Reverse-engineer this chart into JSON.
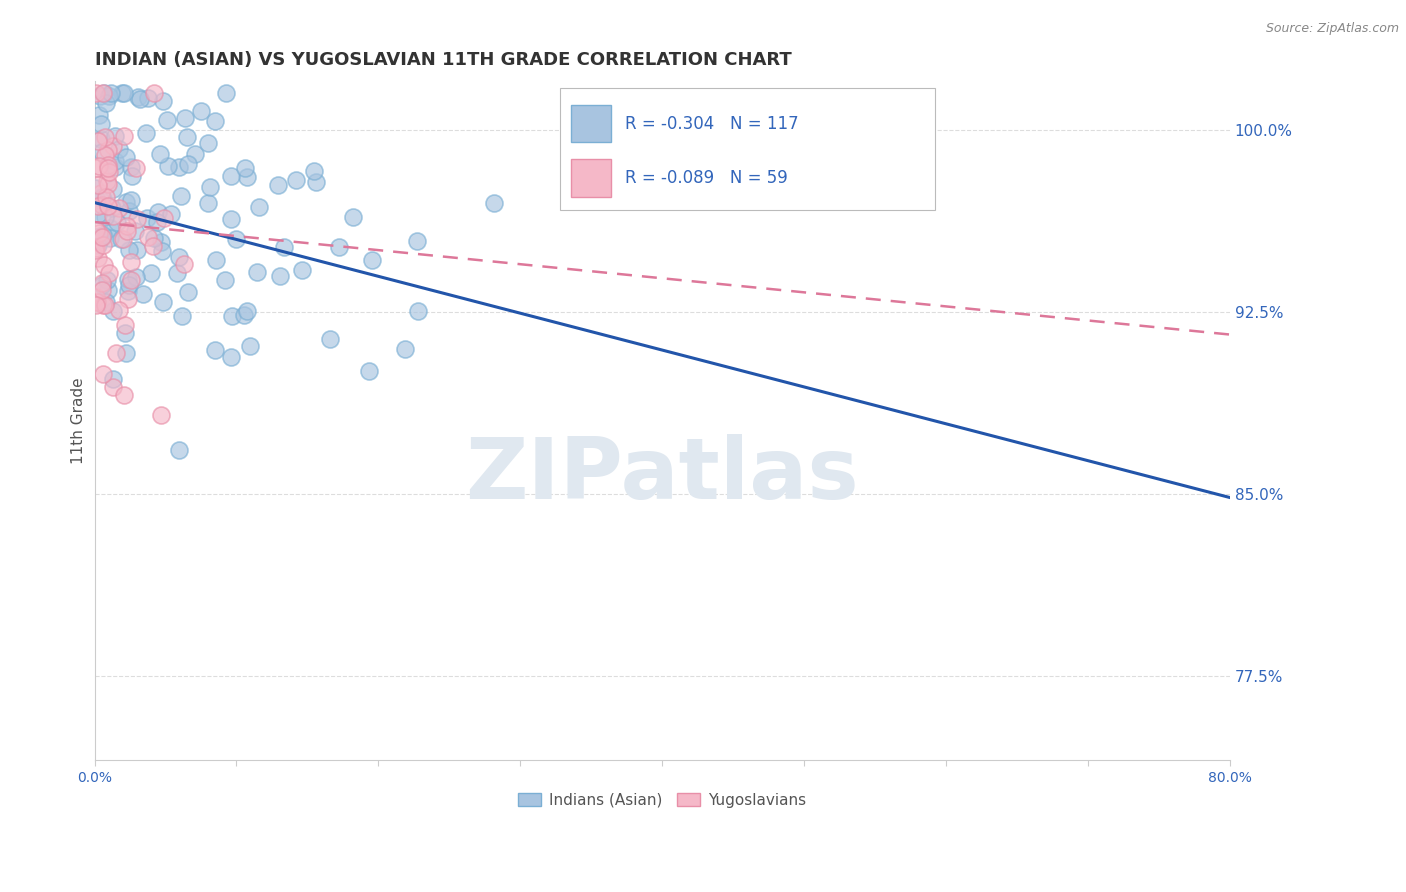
{
  "title": "INDIAN (ASIAN) VS YUGOSLAVIAN 11TH GRADE CORRELATION CHART",
  "source_text": "Source: ZipAtlas.com",
  "ylabel": "11th Grade",
  "xlim": [
    0.0,
    80.0
  ],
  "ylim": [
    74.0,
    102.0
  ],
  "yticks": [
    77.5,
    85.0,
    92.5,
    100.0
  ],
  "xtick_positions": [
    0.0,
    10.0,
    20.0,
    30.0,
    40.0,
    50.0,
    60.0,
    70.0,
    80.0
  ],
  "xtick_labels_show": [
    "0.0%",
    "",
    "",
    "",
    "",
    "",
    "",
    "",
    "80.0%"
  ],
  "ytick_labels": [
    "77.5%",
    "85.0%",
    "92.5%",
    "100.0%"
  ],
  "blue_color": "#A8C4E0",
  "blue_edge_color": "#7BAFD4",
  "pink_color": "#F5B8C8",
  "pink_edge_color": "#E88FA8",
  "blue_line_color": "#2255AA",
  "pink_line_color": "#DD7799",
  "axis_color": "#CCCCCC",
  "grid_color": "#DDDDDD",
  "label_color": "#3366BB",
  "text_color": "#555555",
  "title_color": "#333333",
  "watermark": "ZIPatlas",
  "watermark_color": "#E0E8F0",
  "legend_Indians": "Indians (Asian)",
  "legend_Yugoslavians": "Yugoslavians",
  "blue_intercept": 97.0,
  "blue_slope": -0.152,
  "pink_intercept": 96.2,
  "pink_slope": -0.058,
  "blue_seed": 42,
  "pink_seed": 77
}
